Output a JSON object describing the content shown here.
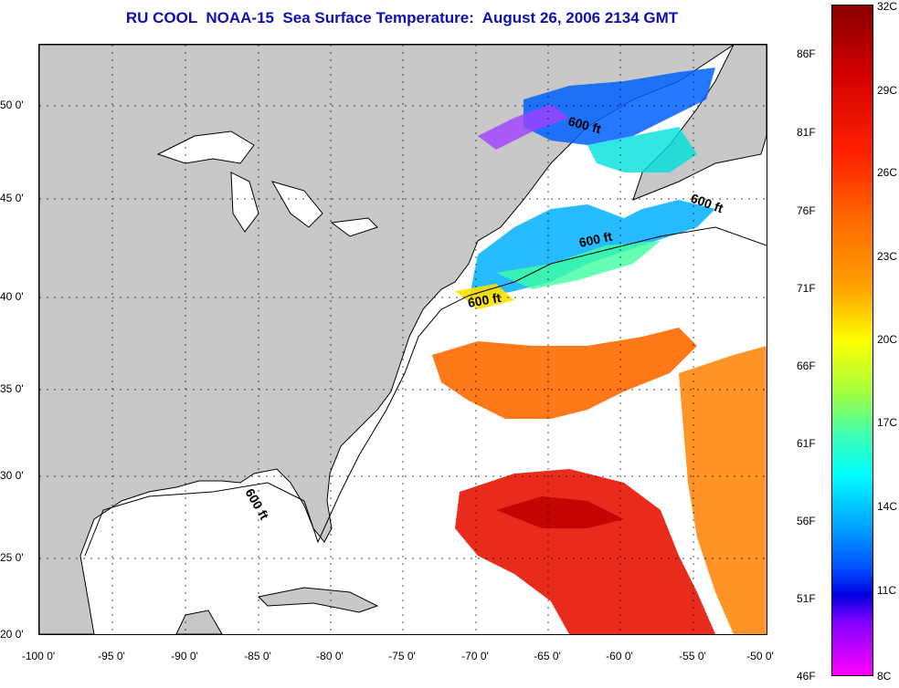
{
  "title": "RU COOL  NOAA-15  Sea Surface Temperature:  August 26, 2006 2134 GMT",
  "latitude_labels": [
    "50 0'",
    "45 0'",
    "40 0'",
    "35 0'",
    "30 0'",
    "25 0'",
    "20 0'"
  ],
  "longitude_labels": [
    "-100 0'",
    "-95 0'",
    "-90 0'",
    "-85 0'",
    "-80 0'",
    "-75 0'",
    "-70 0'",
    "-65 0'",
    "-60 0'",
    "-55 0'",
    "-50 0'"
  ],
  "colorbar": {
    "fahrenheit_labels": [
      "86F",
      "81F",
      "76F",
      "71F",
      "66F",
      "61F",
      "56F",
      "51F",
      "46F"
    ],
    "celsius_labels": [
      "32C",
      "29C",
      "26C",
      "23C",
      "20C",
      "17C",
      "14C",
      "11C",
      "8C"
    ]
  },
  "depth_contours": [
    {
      "label": "600 ft"
    },
    {
      "label": "600 ft"
    },
    {
      "label": "600 ft"
    },
    {
      "label": "600 ft"
    },
    {
      "label": "600 ft"
    }
  ],
  "colors": {
    "land": "#c8c8c8",
    "ocean_no_data": "#ffffff",
    "title": "#1010b0",
    "warm": "#e02010",
    "cool": "#00c0ff"
  }
}
